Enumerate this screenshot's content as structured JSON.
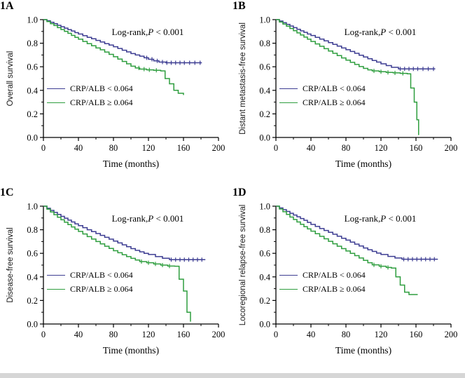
{
  "figure": {
    "background": "#ffffff",
    "bottom_bar_color": "#d6d6d6"
  },
  "colors": {
    "group_low": "#3d3d92",
    "group_high": "#2f9e3f",
    "axis": "#000000"
  },
  "chart_data": [
    {
      "type": "line",
      "subtype": "kaplan-meier",
      "panel_label": "1A",
      "xlabel": "Time (months)",
      "ylabel": "Overall survival",
      "xlim": [
        0,
        200
      ],
      "ylim": [
        0.0,
        1.0
      ],
      "xticks": [
        0,
        40,
        80,
        120,
        160,
        200
      ],
      "xticks_minor": [
        20,
        60,
        100,
        140,
        180
      ],
      "yticks": [
        0.0,
        0.2,
        0.4,
        0.6,
        0.8,
        1.0
      ],
      "yticks_minor": [
        0.1,
        0.3,
        0.5,
        0.7,
        0.9
      ],
      "annotation": {
        "prefix": "Log-rank,",
        "italic": "P",
        "suffix": " < 0.001"
      },
      "legend": [
        "CRP/ALB < 0.064",
        "CRP/ALB ≥ 0.064"
      ],
      "series": [
        {
          "name": "CRP/ALB < 0.064",
          "color_key": "group_low",
          "x": [
            0,
            4,
            8,
            12,
            16,
            20,
            24,
            28,
            32,
            36,
            40,
            45,
            50,
            55,
            60,
            65,
            70,
            75,
            80,
            85,
            90,
            95,
            100,
            105,
            110,
            115,
            120,
            126,
            132,
            140,
            181
          ],
          "y": [
            1,
            0.99,
            0.978,
            0.966,
            0.952,
            0.94,
            0.928,
            0.915,
            0.903,
            0.89,
            0.878,
            0.864,
            0.85,
            0.838,
            0.824,
            0.81,
            0.796,
            0.784,
            0.77,
            0.755,
            0.74,
            0.726,
            0.712,
            0.7,
            0.69,
            0.676,
            0.664,
            0.65,
            0.64,
            0.634,
            0.634
          ],
          "censor_x": [
            118,
            124,
            130,
            136,
            141,
            146,
            151,
            156,
            161,
            167,
            173,
            179
          ]
        },
        {
          "name": "CRP/ALB ≥ 0.064",
          "color_key": "group_high",
          "x": [
            0,
            4,
            8,
            12,
            16,
            20,
            24,
            28,
            32,
            36,
            40,
            45,
            50,
            55,
            60,
            65,
            70,
            75,
            80,
            85,
            90,
            95,
            100,
            105,
            110,
            118,
            126,
            134,
            139,
            144,
            149,
            154,
            160
          ],
          "y": [
            1,
            0.984,
            0.966,
            0.95,
            0.932,
            0.916,
            0.9,
            0.884,
            0.866,
            0.85,
            0.834,
            0.815,
            0.796,
            0.778,
            0.76,
            0.744,
            0.725,
            0.705,
            0.685,
            0.665,
            0.645,
            0.625,
            0.605,
            0.59,
            0.58,
            0.574,
            0.57,
            0.565,
            0.5,
            0.455,
            0.4,
            0.375,
            0.36
          ],
          "censor_x": [
            109,
            115,
            121,
            129
          ]
        }
      ]
    },
    {
      "type": "line",
      "subtype": "kaplan-meier",
      "panel_label": "1B",
      "xlabel": "Time (months)",
      "ylabel": "Distant metastasis-free survival",
      "xlim": [
        0,
        200
      ],
      "ylim": [
        0.0,
        1.0
      ],
      "xticks": [
        0,
        40,
        80,
        120,
        160,
        200
      ],
      "xticks_minor": [
        20,
        60,
        100,
        140,
        180
      ],
      "yticks": [
        0.0,
        0.2,
        0.4,
        0.6,
        0.8,
        1.0
      ],
      "yticks_minor": [
        0.1,
        0.3,
        0.5,
        0.7,
        0.9
      ],
      "annotation": {
        "prefix": "Log-rank,",
        "italic": "P",
        "suffix": " < 0.001"
      },
      "legend": [
        "CRP/ALB < 0.064",
        "CRP/ALB ≥ 0.064"
      ],
      "series": [
        {
          "name": "CRP/ALB < 0.064",
          "color_key": "group_low",
          "x": [
            0,
            4,
            8,
            12,
            16,
            20,
            24,
            28,
            32,
            36,
            40,
            45,
            50,
            55,
            60,
            65,
            70,
            75,
            80,
            85,
            90,
            95,
            100,
            105,
            110,
            115,
            120,
            126,
            132,
            140,
            182
          ],
          "y": [
            1,
            0.988,
            0.974,
            0.96,
            0.946,
            0.932,
            0.918,
            0.905,
            0.892,
            0.878,
            0.865,
            0.85,
            0.835,
            0.82,
            0.805,
            0.79,
            0.775,
            0.76,
            0.745,
            0.73,
            0.714,
            0.698,
            0.683,
            0.668,
            0.653,
            0.64,
            0.625,
            0.61,
            0.595,
            0.582,
            0.582
          ],
          "censor_x": [
            142,
            147,
            152,
            157,
            162,
            168,
            174,
            180
          ]
        },
        {
          "name": "CRP/ALB ≥ 0.064",
          "color_key": "group_high",
          "x": [
            0,
            4,
            8,
            12,
            16,
            20,
            24,
            28,
            32,
            36,
            40,
            45,
            50,
            55,
            60,
            65,
            70,
            75,
            80,
            85,
            90,
            95,
            100,
            105,
            110,
            118,
            126,
            134,
            142,
            150,
            154,
            158,
            161,
            163
          ],
          "y": [
            1,
            0.98,
            0.962,
            0.944,
            0.925,
            0.906,
            0.888,
            0.87,
            0.852,
            0.834,
            0.815,
            0.794,
            0.774,
            0.754,
            0.734,
            0.714,
            0.695,
            0.675,
            0.656,
            0.638,
            0.62,
            0.602,
            0.586,
            0.574,
            0.565,
            0.558,
            0.552,
            0.548,
            0.544,
            0.54,
            0.42,
            0.3,
            0.15,
            0.02
          ],
          "censor_x": [
            112,
            120,
            128,
            136,
            145
          ]
        }
      ]
    },
    {
      "type": "line",
      "subtype": "kaplan-meier",
      "panel_label": "1C",
      "xlabel": "Time (months)",
      "ylabel": "Disease-free survival",
      "xlim": [
        0,
        200
      ],
      "ylim": [
        0.0,
        1.0
      ],
      "xticks": [
        0,
        40,
        80,
        120,
        160,
        200
      ],
      "xticks_minor": [
        20,
        60,
        100,
        140,
        180
      ],
      "yticks": [
        0.0,
        0.2,
        0.4,
        0.6,
        0.8,
        1.0
      ],
      "yticks_minor": [
        0.1,
        0.3,
        0.5,
        0.7,
        0.9
      ],
      "annotation": {
        "prefix": "Log-rank,",
        "italic": "P",
        "suffix": " < 0.001"
      },
      "legend": [
        "CRP/ALB < 0.064",
        "CRP/ALB ≥ 0.064"
      ],
      "series": [
        {
          "name": "CRP/ALB < 0.064",
          "color_key": "group_low",
          "x": [
            0,
            4,
            8,
            12,
            16,
            20,
            24,
            28,
            32,
            36,
            40,
            45,
            50,
            55,
            60,
            65,
            70,
            75,
            80,
            85,
            90,
            95,
            100,
            105,
            110,
            115,
            120,
            128,
            136,
            144,
            185
          ],
          "y": [
            1,
            0.982,
            0.964,
            0.947,
            0.93,
            0.914,
            0.898,
            0.882,
            0.866,
            0.85,
            0.835,
            0.818,
            0.8,
            0.784,
            0.768,
            0.752,
            0.736,
            0.72,
            0.704,
            0.688,
            0.672,
            0.656,
            0.64,
            0.625,
            0.612,
            0.6,
            0.59,
            0.572,
            0.558,
            0.546,
            0.546
          ],
          "censor_x": [
            146,
            151,
            156,
            161,
            166,
            171,
            176,
            181
          ]
        },
        {
          "name": "CRP/ALB ≥ 0.064",
          "color_key": "group_high",
          "x": [
            0,
            4,
            8,
            12,
            16,
            20,
            24,
            28,
            32,
            36,
            40,
            45,
            50,
            55,
            60,
            65,
            70,
            75,
            80,
            85,
            90,
            95,
            100,
            105,
            110,
            118,
            126,
            134,
            142,
            150,
            155,
            160,
            164,
            168
          ],
          "y": [
            1,
            0.975,
            0.951,
            0.928,
            0.906,
            0.885,
            0.864,
            0.844,
            0.824,
            0.805,
            0.786,
            0.764,
            0.742,
            0.721,
            0.7,
            0.68,
            0.66,
            0.641,
            0.622,
            0.605,
            0.588,
            0.572,
            0.557,
            0.543,
            0.53,
            0.52,
            0.51,
            0.5,
            0.492,
            0.49,
            0.38,
            0.28,
            0.1,
            0.02
          ],
          "censor_x": [
            112,
            120,
            128,
            136,
            144
          ]
        }
      ]
    },
    {
      "type": "line",
      "subtype": "kaplan-meier",
      "panel_label": "1D",
      "xlabel": "Time (months)",
      "ylabel": "Locoregional relapse-free survival",
      "xlim": [
        0,
        200
      ],
      "ylim": [
        0.0,
        1.0
      ],
      "xticks": [
        0,
        40,
        80,
        120,
        160,
        200
      ],
      "xticks_minor": [
        20,
        60,
        100,
        140,
        180
      ],
      "yticks": [
        0.0,
        0.2,
        0.4,
        0.6,
        0.8,
        1.0
      ],
      "yticks_minor": [
        0.1,
        0.3,
        0.5,
        0.7,
        0.9
      ],
      "annotation": {
        "prefix": "Log-rank,",
        "italic": "P",
        "suffix": " < 0.001"
      },
      "legend": [
        "CRP/ALB < 0.064",
        "CRP/ALB ≥ 0.064"
      ],
      "series": [
        {
          "name": "CRP/ALB < 0.064",
          "color_key": "group_low",
          "x": [
            0,
            4,
            8,
            12,
            16,
            20,
            24,
            28,
            32,
            36,
            40,
            45,
            50,
            55,
            60,
            65,
            70,
            75,
            80,
            85,
            90,
            95,
            100,
            105,
            110,
            115,
            120,
            128,
            136,
            144,
            185
          ],
          "y": [
            1,
            0.985,
            0.97,
            0.955,
            0.94,
            0.925,
            0.91,
            0.895,
            0.88,
            0.862,
            0.845,
            0.828,
            0.81,
            0.794,
            0.778,
            0.762,
            0.745,
            0.728,
            0.712,
            0.695,
            0.678,
            0.662,
            0.645,
            0.63,
            0.616,
            0.602,
            0.59,
            0.574,
            0.56,
            0.55,
            0.55
          ],
          "censor_x": [
            146,
            151,
            156,
            161,
            166,
            171,
            176,
            181
          ]
        },
        {
          "name": "CRP/ALB ≥ 0.064",
          "color_key": "group_high",
          "x": [
            0,
            4,
            8,
            12,
            16,
            20,
            24,
            28,
            32,
            36,
            40,
            45,
            50,
            55,
            60,
            65,
            70,
            75,
            80,
            85,
            90,
            95,
            100,
            105,
            110,
            118,
            126,
            132,
            137,
            142,
            147,
            152,
            162
          ],
          "y": [
            1,
            0.976,
            0.953,
            0.93,
            0.908,
            0.887,
            0.866,
            0.846,
            0.826,
            0.807,
            0.788,
            0.766,
            0.744,
            0.723,
            0.702,
            0.681,
            0.66,
            0.64,
            0.62,
            0.6,
            0.58,
            0.56,
            0.54,
            0.52,
            0.502,
            0.49,
            0.48,
            0.475,
            0.4,
            0.33,
            0.27,
            0.25,
            0.25
          ],
          "censor_x": [
            112,
            120,
            128
          ]
        }
      ]
    }
  ]
}
